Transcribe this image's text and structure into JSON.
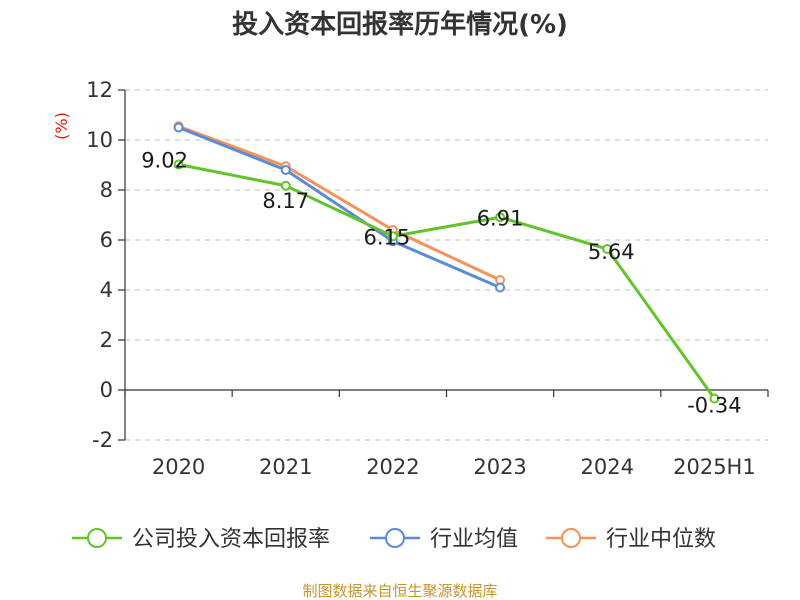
{
  "chart_data": {
    "type": "line",
    "title": "投入资本回报率历年情况(%)",
    "ylabel": "(%)",
    "xlabel": "",
    "categories": [
      "2020",
      "2021",
      "2022",
      "2023",
      "2024",
      "2025H1"
    ],
    "ylim": [
      -2,
      12
    ],
    "yticks": [
      -2,
      0,
      2,
      4,
      6,
      8,
      10,
      12
    ],
    "grid": true,
    "legend_position": "bottom",
    "series": [
      {
        "name": "公司投入资本回报率",
        "color": "#62c32a",
        "values": [
          9.02,
          8.17,
          6.15,
          6.91,
          5.64,
          -0.34
        ],
        "labels": [
          "9.02",
          "8.17",
          "6.15",
          "6.91",
          "5.64",
          "-0.34"
        ]
      },
      {
        "name": "行业均值",
        "color": "#5b8ad8",
        "values": [
          10.5,
          8.8,
          5.95,
          4.1,
          null,
          null
        ]
      },
      {
        "name": "行业中位数",
        "color": "#f5925a",
        "values": [
          10.55,
          8.95,
          6.4,
          4.4,
          null,
          null
        ]
      }
    ]
  },
  "source": "制图数据来自恒生聚源数据库"
}
